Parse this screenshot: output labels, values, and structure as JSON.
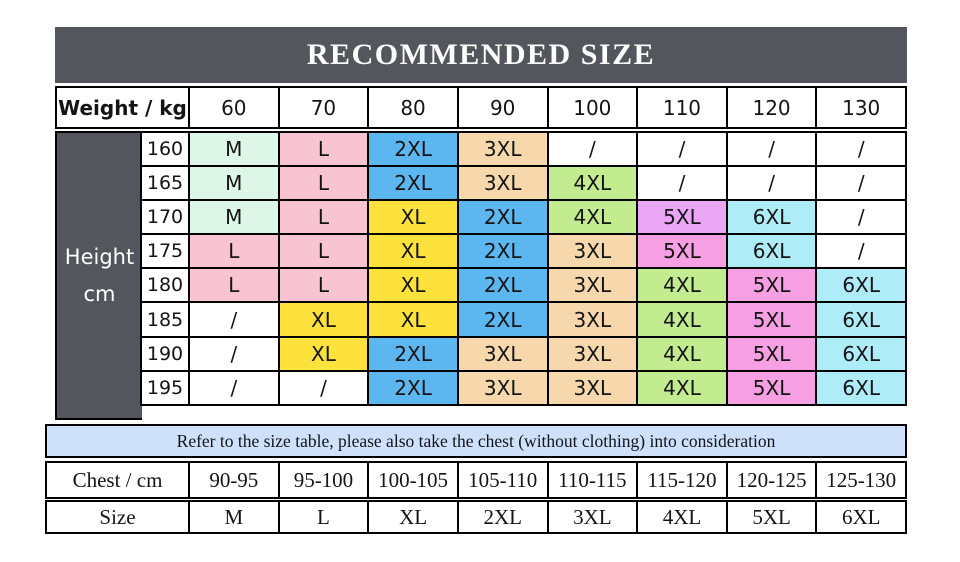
{
  "title": "RECOMMENDED SIZE",
  "weight_header": {
    "label": "Weight / kg",
    "values": [
      "60",
      "70",
      "80",
      "90",
      "100",
      "110",
      "120",
      "130"
    ]
  },
  "height_axis": {
    "line1": "Height",
    "line2": "cm"
  },
  "size_grid": {
    "rows": [
      {
        "height": "160",
        "cells": [
          {
            "t": "M",
            "c": "mint"
          },
          {
            "t": "L",
            "c": "pink"
          },
          {
            "t": "2XL",
            "c": "blue"
          },
          {
            "t": "3XL",
            "c": "peach"
          },
          {
            "t": "/",
            "c": "white"
          },
          {
            "t": "/",
            "c": "white"
          },
          {
            "t": "/",
            "c": "white"
          },
          {
            "t": "/",
            "c": "white"
          }
        ]
      },
      {
        "height": "165",
        "cells": [
          {
            "t": "M",
            "c": "mint"
          },
          {
            "t": "L",
            "c": "pink"
          },
          {
            "t": "2XL",
            "c": "blue"
          },
          {
            "t": "3XL",
            "c": "peach"
          },
          {
            "t": "4XL",
            "c": "green"
          },
          {
            "t": "/",
            "c": "white"
          },
          {
            "t": "/",
            "c": "white"
          },
          {
            "t": "/",
            "c": "white"
          }
        ]
      },
      {
        "height": "170",
        "cells": [
          {
            "t": "M",
            "c": "mint"
          },
          {
            "t": "L",
            "c": "pink"
          },
          {
            "t": "XL",
            "c": "yellow"
          },
          {
            "t": "2XL",
            "c": "blue"
          },
          {
            "t": "4XL",
            "c": "green"
          },
          {
            "t": "5XL",
            "c": "violet"
          },
          {
            "t": "6XL",
            "c": "cyan"
          },
          {
            "t": "/",
            "c": "white"
          }
        ]
      },
      {
        "height": "175",
        "cells": [
          {
            "t": "L",
            "c": "pink"
          },
          {
            "t": "L",
            "c": "pink"
          },
          {
            "t": "XL",
            "c": "yellow"
          },
          {
            "t": "2XL",
            "c": "blue"
          },
          {
            "t": "3XL",
            "c": "peach"
          },
          {
            "t": "5XL",
            "c": "pink5"
          },
          {
            "t": "6XL",
            "c": "cyan"
          },
          {
            "t": "/",
            "c": "white"
          }
        ]
      },
      {
        "height": "180",
        "cells": [
          {
            "t": "L",
            "c": "pink"
          },
          {
            "t": "L",
            "c": "pink"
          },
          {
            "t": "XL",
            "c": "yellow"
          },
          {
            "t": "2XL",
            "c": "blue"
          },
          {
            "t": "3XL",
            "c": "peach"
          },
          {
            "t": "4XL",
            "c": "green"
          },
          {
            "t": "5XL",
            "c": "pink5"
          },
          {
            "t": "6XL",
            "c": "cyan"
          }
        ]
      },
      {
        "height": "185",
        "cells": [
          {
            "t": "/",
            "c": "white"
          },
          {
            "t": "XL",
            "c": "yellow"
          },
          {
            "t": "XL",
            "c": "yellow"
          },
          {
            "t": "2XL",
            "c": "blue"
          },
          {
            "t": "3XL",
            "c": "peach"
          },
          {
            "t": "4XL",
            "c": "green"
          },
          {
            "t": "5XL",
            "c": "pink5"
          },
          {
            "t": "6XL",
            "c": "cyan"
          }
        ]
      },
      {
        "height": "190",
        "cells": [
          {
            "t": "/",
            "c": "white"
          },
          {
            "t": "XL",
            "c": "yellow"
          },
          {
            "t": "2XL",
            "c": "blue"
          },
          {
            "t": "3XL",
            "c": "peach"
          },
          {
            "t": "3XL",
            "c": "peach"
          },
          {
            "t": "4XL",
            "c": "green"
          },
          {
            "t": "5XL",
            "c": "pink5"
          },
          {
            "t": "6XL",
            "c": "cyan"
          }
        ]
      },
      {
        "height": "195",
        "cells": [
          {
            "t": "/",
            "c": "white"
          },
          {
            "t": "/",
            "c": "white"
          },
          {
            "t": "2XL",
            "c": "blue"
          },
          {
            "t": "3XL",
            "c": "peach"
          },
          {
            "t": "3XL",
            "c": "peach"
          },
          {
            "t": "4XL",
            "c": "green"
          },
          {
            "t": "5XL",
            "c": "pink5"
          },
          {
            "t": "6XL",
            "c": "cyan"
          }
        ]
      }
    ]
  },
  "note": "Refer to the size table, please also take the chest (without clothing) into consideration",
  "chest_row": {
    "label": "Chest / cm",
    "values": [
      "90-95",
      "95-100",
      "100-105",
      "105-110",
      "110-115",
      "115-120",
      "120-125",
      "125-130"
    ]
  },
  "size_row": {
    "label": "Size",
    "values": [
      "M",
      "L",
      "XL",
      "2XL",
      "3XL",
      "4XL",
      "5XL",
      "6XL"
    ]
  },
  "colors": {
    "header_dark": "#54565e",
    "note_blue": "#cfe1fa",
    "mint": "#def6e8",
    "pink": "#f8c4d1",
    "yellow": "#fde23e",
    "blue": "#5cb6f0",
    "peach": "#f7d8ad",
    "green": "#c3ec90",
    "violet": "#eaa6f4",
    "pink5": "#f79fe3",
    "cyan": "#aeecf8",
    "white": "#ffffff"
  },
  "chart_data": {
    "type": "table",
    "title": "RECOMMENDED SIZE",
    "x_label": "Weight / kg",
    "y_label": "Height cm",
    "weight_kg": [
      60,
      70,
      80,
      90,
      100,
      110,
      120,
      130
    ],
    "height_cm": [
      160,
      165,
      170,
      175,
      180,
      185,
      190,
      195
    ],
    "grid": [
      [
        "M",
        "L",
        "2XL",
        "3XL",
        "/",
        "/",
        "/",
        "/"
      ],
      [
        "M",
        "L",
        "2XL",
        "3XL",
        "4XL",
        "/",
        "/",
        "/"
      ],
      [
        "M",
        "L",
        "XL",
        "2XL",
        "4XL",
        "5XL",
        "6XL",
        "/"
      ],
      [
        "L",
        "L",
        "XL",
        "2XL",
        "3XL",
        "5XL",
        "6XL",
        "/"
      ],
      [
        "L",
        "L",
        "XL",
        "2XL",
        "3XL",
        "4XL",
        "5XL",
        "6XL"
      ],
      [
        "/",
        "XL",
        "XL",
        "2XL",
        "3XL",
        "4XL",
        "5XL",
        "6XL"
      ],
      [
        "/",
        "XL",
        "2XL",
        "3XL",
        "3XL",
        "4XL",
        "5XL",
        "6XL"
      ],
      [
        "/",
        "/",
        "2XL",
        "3XL",
        "3XL",
        "4XL",
        "5XL",
        "6XL"
      ]
    ],
    "note": "Refer to the size table, please also take the chest (without clothing) into consideration",
    "chest_cm": [
      "90-95",
      "95-100",
      "100-105",
      "105-110",
      "110-115",
      "115-120",
      "120-125",
      "125-130"
    ],
    "size_for_chest": [
      "M",
      "L",
      "XL",
      "2XL",
      "3XL",
      "4XL",
      "5XL",
      "6XL"
    ]
  }
}
